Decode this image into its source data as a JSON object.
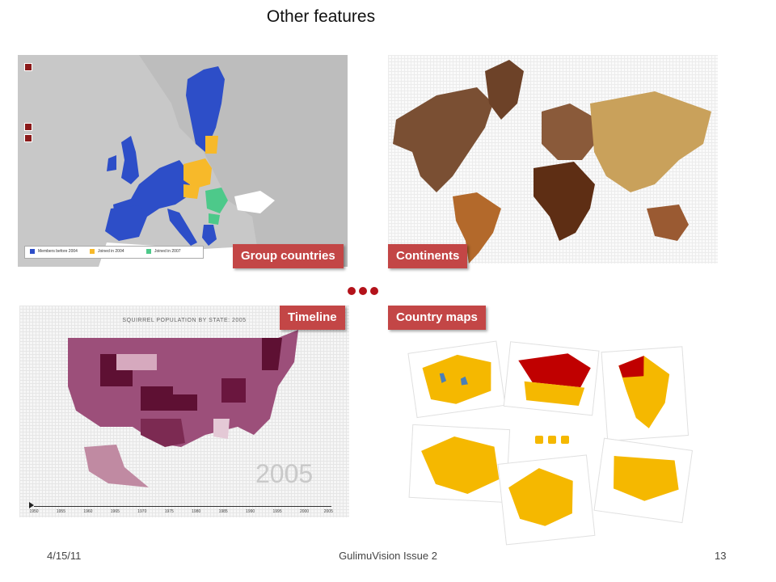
{
  "slide": {
    "title": "Other features",
    "labels": {
      "group": "Group countries",
      "continents": "Continents",
      "timeline": "Timeline",
      "country_maps": "Country maps"
    },
    "footer": {
      "date": "4/15/11",
      "center": "GulimuVision Issue 2",
      "page": "13"
    }
  },
  "eu_map": {
    "legend": [
      "Members before 2004",
      "Joined in 2004",
      "Joined in 2007"
    ],
    "colors": {
      "before2004": "#2d4ec8",
      "joined2004": "#f7b92a",
      "joined2007": "#4dc98a",
      "other": "#c8c8c8"
    }
  },
  "us_map": {
    "title": "SQUIRREL POPULATION BY STATE: 2005",
    "year": "2005",
    "ticks": [
      "1950",
      "1955",
      "1960",
      "1965",
      "1970",
      "1975",
      "1980",
      "1985",
      "1990",
      "1995",
      "2000",
      "2005"
    ]
  },
  "colors": {
    "label_bg": "#c34646",
    "dots_red": "#b3121a",
    "dots_orange": "#f5b800"
  }
}
